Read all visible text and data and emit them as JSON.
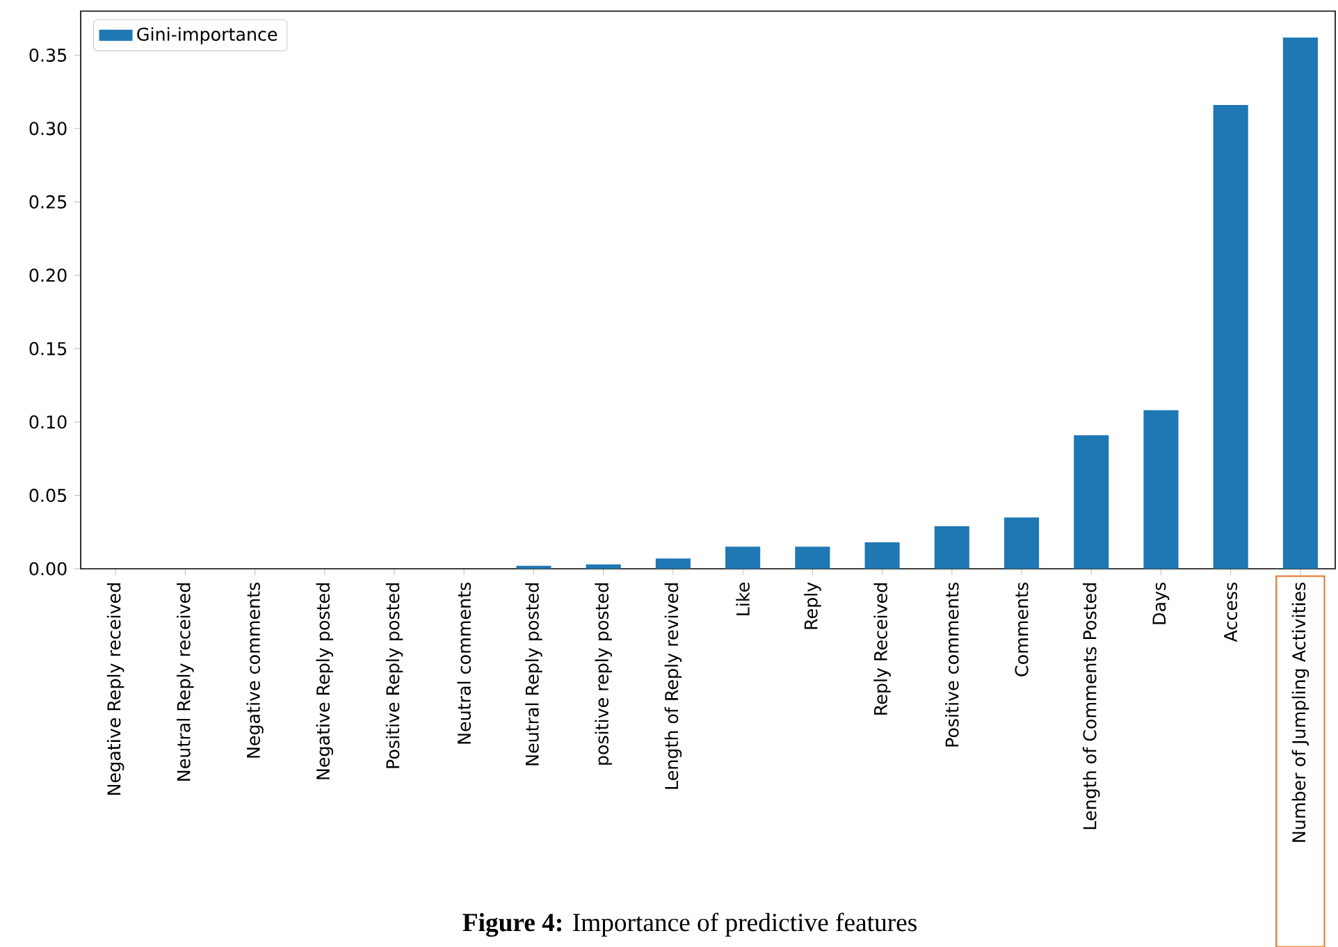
{
  "chart_data": {
    "type": "bar",
    "categories": [
      "Negative Reply received",
      "Neutral Reply received",
      "Negative comments",
      "Negative Reply posted",
      "Positive Reply posted",
      "Neutral comments",
      "Neutral Reply posted",
      "positive reply posted",
      "Length of Reply revived",
      "Like",
      "Reply",
      "Reply Received",
      "Positive comments",
      "Comments",
      "Length of Comments Posted",
      "Days",
      "Access",
      "Number of Jumpling Activities"
    ],
    "series": [
      {
        "name": "Gini-importance",
        "color": "#1f77b4",
        "values": [
          0,
          0,
          0,
          0,
          0,
          0,
          0.002,
          0.003,
          0.007,
          0.015,
          0.015,
          0.018,
          0.029,
          0.035,
          0.091,
          0.108,
          0.316,
          0.362
        ]
      }
    ],
    "ylim": [
      0,
      0.38
    ],
    "yticks": [
      {
        "value": 0,
        "label": "0.00"
      },
      {
        "value": 0.05,
        "label": "0.05"
      },
      {
        "value": 0.1,
        "label": "0.10"
      },
      {
        "value": 0.15,
        "label": "0.15"
      },
      {
        "value": 0.2,
        "label": "0.20"
      },
      {
        "value": 0.25,
        "label": "0.25"
      },
      {
        "value": 0.3,
        "label": "0.30"
      },
      {
        "value": 0.35,
        "label": "0.35"
      }
    ],
    "legend": "top left",
    "grid": false,
    "annotations": [
      "**Figure 4:** Importance of predictive features"
    ]
  }
}
